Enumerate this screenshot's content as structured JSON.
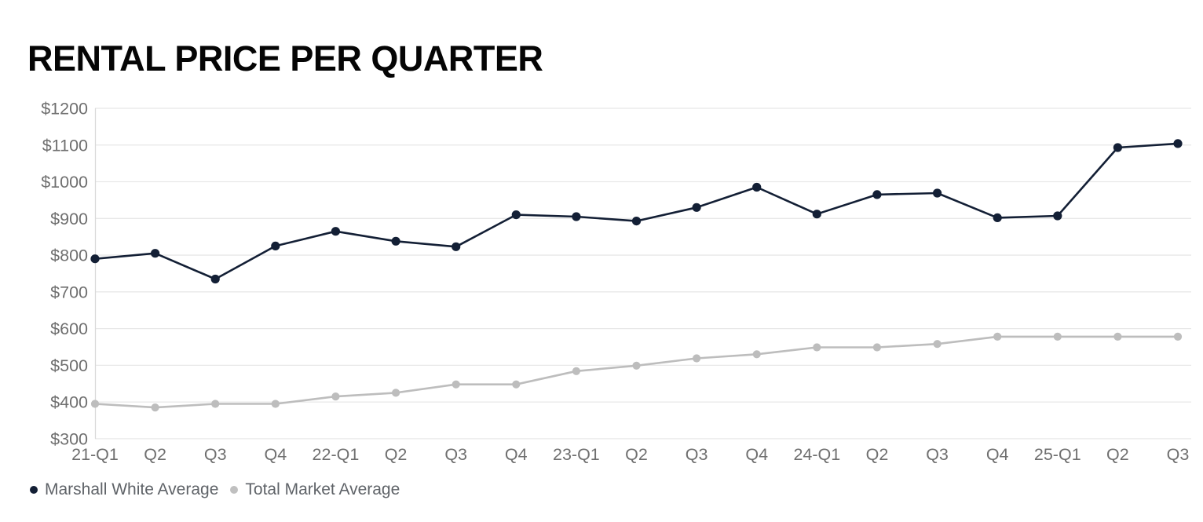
{
  "chart": {
    "title": "RENTAL PRICE PER QUARTER",
    "legend": [
      {
        "label": "Marshall White Average",
        "color": "#131f35"
      },
      {
        "label": "Total Market Average",
        "color": "#c0c0c0"
      }
    ]
  },
  "chart_data": {
    "type": "line",
    "title": "RENTAL PRICE PER QUARTER",
    "categories": [
      "21-Q1",
      "Q2",
      "Q3",
      "Q4",
      "22-Q1",
      "Q2",
      "Q3",
      "Q4",
      "23-Q1",
      "Q2",
      "Q3",
      "Q4",
      "24-Q1",
      "Q2",
      "Q3",
      "Q4",
      "25-Q1",
      "Q2",
      "Q3"
    ],
    "series": [
      {
        "name": "Marshall White Average",
        "color": "#131f35",
        "values": [
          790,
          805,
          735,
          825,
          865,
          838,
          823,
          910,
          905,
          893,
          930,
          985,
          912,
          965,
          969,
          902,
          907,
          1093,
          1104
        ]
      },
      {
        "name": "Total Market Average",
        "color": "#bdbdbd",
        "values": [
          395,
          385,
          395,
          395,
          415,
          425,
          448,
          448,
          484,
          499,
          519,
          530,
          549,
          549,
          558,
          578,
          578,
          578,
          578
        ]
      }
    ],
    "xlabel": "",
    "ylabel": "",
    "ylim": [
      300,
      1200
    ],
    "yticks": [
      300,
      400,
      500,
      600,
      700,
      800,
      900,
      1000,
      1100,
      1200
    ],
    "ytick_prefix": "$",
    "grid": true,
    "legend_position": "bottom-left"
  },
  "colors": {
    "background": "#ffffff",
    "grid": "#e8e8e8",
    "axis": "#d9d9d9",
    "tick_label": "#6f6f6f",
    "legend_text": "#5f6368",
    "title": "#050505"
  }
}
